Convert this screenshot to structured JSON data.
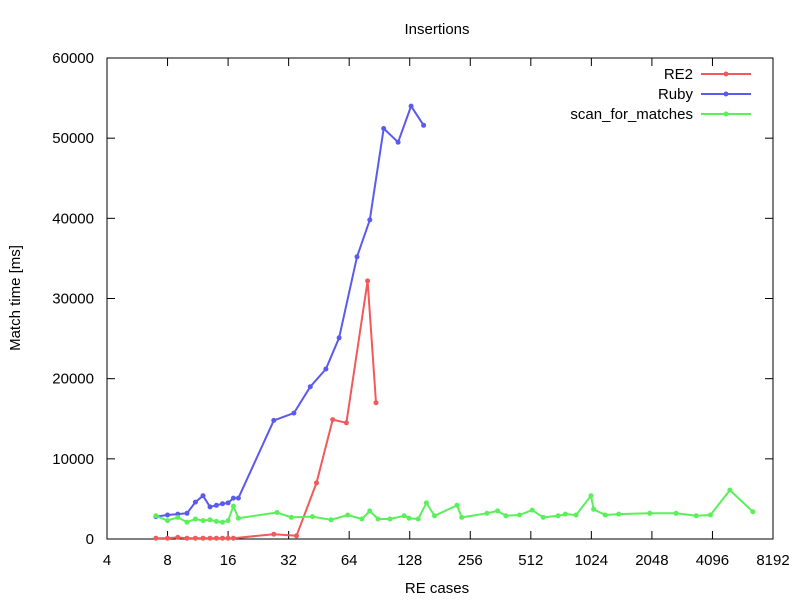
{
  "chart_data": {
    "type": "line",
    "title": "Insertions",
    "xlabel": "RE cases",
    "ylabel": "Match time [ms]",
    "x_scale": "log2",
    "xlim": [
      4,
      8192
    ],
    "ylim": [
      0,
      60000
    ],
    "x_ticks": [
      4,
      8,
      16,
      32,
      64,
      128,
      256,
      512,
      1024,
      2048,
      4096,
      8192
    ],
    "y_ticks": [
      0,
      10000,
      20000,
      30000,
      40000,
      50000,
      60000
    ],
    "grid": false,
    "legend_position": "top-right",
    "series": [
      {
        "name": "RE2",
        "color": "#f05a5a",
        "points": [
          [
            7,
            100
          ],
          [
            8,
            100
          ],
          [
            9,
            200
          ],
          [
            10,
            100
          ],
          [
            11,
            100
          ],
          [
            12,
            100
          ],
          [
            13,
            100
          ],
          [
            14,
            100
          ],
          [
            15,
            100
          ],
          [
            16,
            100
          ],
          [
            17,
            100
          ],
          [
            27,
            600
          ],
          [
            35,
            400
          ],
          [
            44,
            7000
          ],
          [
            53,
            14900
          ],
          [
            62,
            14500
          ],
          [
            79,
            32200
          ],
          [
            87,
            17000
          ]
        ]
      },
      {
        "name": "Ruby",
        "color": "#5a5af0",
        "points": [
          [
            7,
            2800
          ],
          [
            8,
            3000
          ],
          [
            9,
            3100
          ],
          [
            10,
            3200
          ],
          [
            11,
            4600
          ],
          [
            12,
            5400
          ],
          [
            13,
            4000
          ],
          [
            14,
            4200
          ],
          [
            15,
            4400
          ],
          [
            16,
            4500
          ],
          [
            17,
            5100
          ],
          [
            18,
            5100
          ],
          [
            27,
            14800
          ],
          [
            34,
            15700
          ],
          [
            41,
            19000
          ],
          [
            49,
            21200
          ],
          [
            57,
            25100
          ],
          [
            70,
            35200
          ],
          [
            81,
            39800
          ],
          [
            95,
            51200
          ],
          [
            112,
            49500
          ],
          [
            130,
            54000
          ],
          [
            150,
            51600
          ]
        ]
      },
      {
        "name": "scan_for_matches",
        "color": "#5af05a",
        "points": [
          [
            7,
            2900
          ],
          [
            8,
            2300
          ],
          [
            9,
            2700
          ],
          [
            10,
            2100
          ],
          [
            11,
            2500
          ],
          [
            12,
            2300
          ],
          [
            13,
            2400
          ],
          [
            14,
            2200
          ],
          [
            15,
            2100
          ],
          [
            16,
            2300
          ],
          [
            17,
            4100
          ],
          [
            18,
            2600
          ],
          [
            28,
            3300
          ],
          [
            33,
            2700
          ],
          [
            42,
            2800
          ],
          [
            52,
            2400
          ],
          [
            63,
            3000
          ],
          [
            74,
            2500
          ],
          [
            81,
            3500
          ],
          [
            89,
            2500
          ],
          [
            102,
            2500
          ],
          [
            120,
            2900
          ],
          [
            127,
            2600
          ],
          [
            141,
            2500
          ],
          [
            155,
            4500
          ],
          [
            170,
            2900
          ],
          [
            220,
            4200
          ],
          [
            232,
            2700
          ],
          [
            310,
            3200
          ],
          [
            350,
            3500
          ],
          [
            385,
            2900
          ],
          [
            450,
            3000
          ],
          [
            520,
            3600
          ],
          [
            590,
            2700
          ],
          [
            700,
            2900
          ],
          [
            760,
            3100
          ],
          [
            860,
            3000
          ],
          [
            1020,
            5400
          ],
          [
            1050,
            3700
          ],
          [
            1200,
            3000
          ],
          [
            1400,
            3100
          ],
          [
            2000,
            3200
          ],
          [
            2700,
            3200
          ],
          [
            3400,
            2900
          ],
          [
            4000,
            3000
          ],
          [
            5000,
            6100
          ],
          [
            6500,
            3400
          ]
        ]
      }
    ]
  }
}
